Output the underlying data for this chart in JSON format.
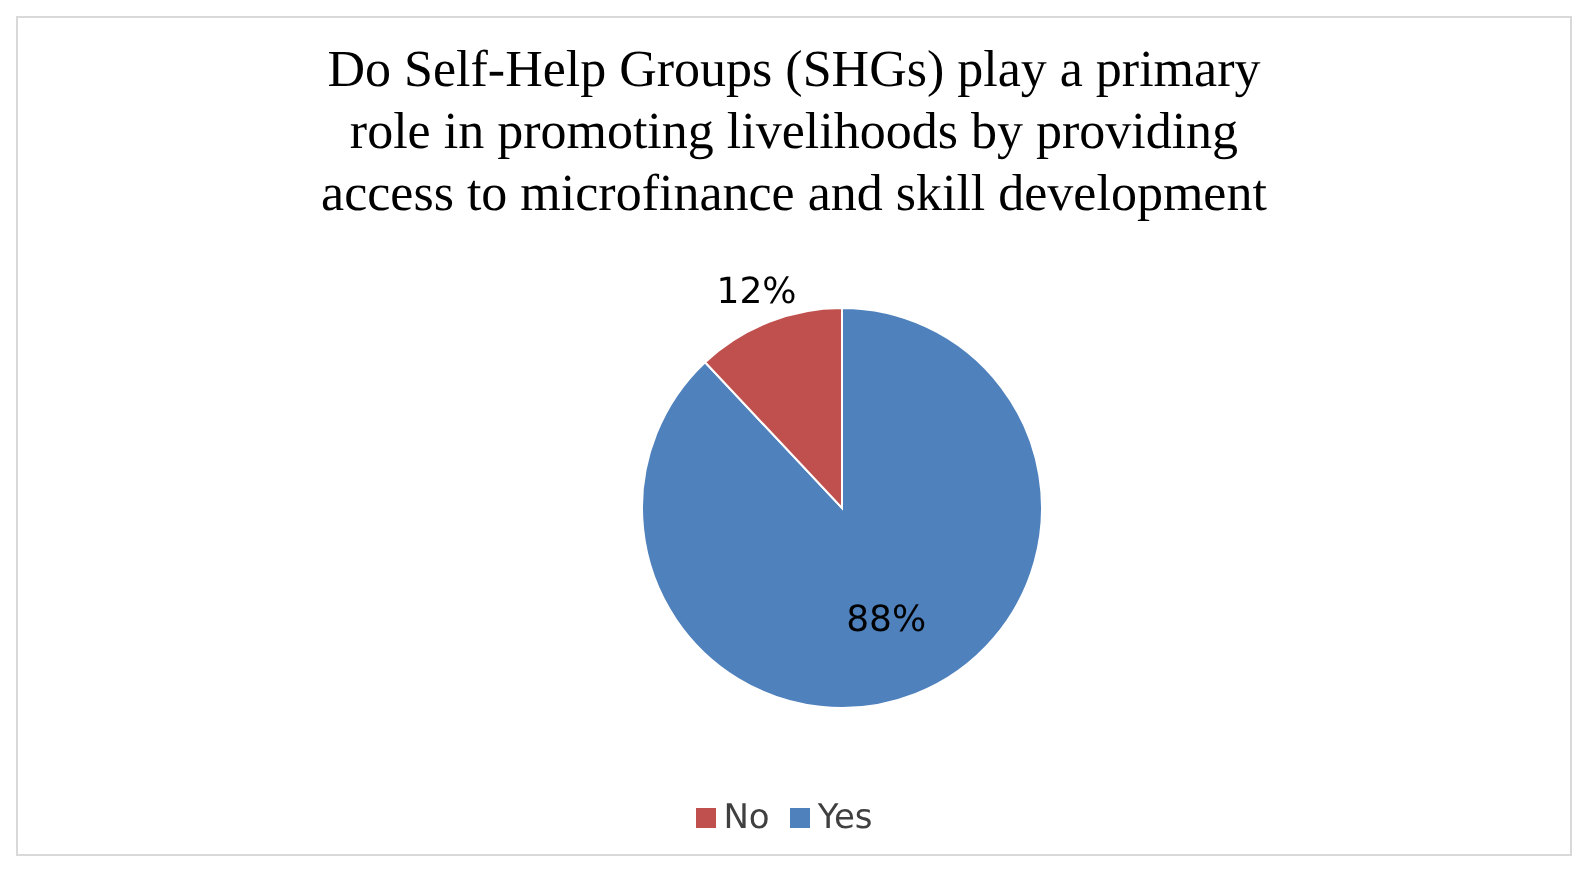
{
  "chart_data": {
    "type": "pie",
    "title": "Do Self-Help Groups (SHGs) play a primary role in promoting livelihoods by providing access to microfinance and skill development",
    "categories": [
      "Yes",
      "No"
    ],
    "values": [
      88,
      12
    ],
    "colors": [
      "#4f81bd",
      "#c0504d"
    ],
    "value_labels": [
      "88%",
      "12%"
    ],
    "legend": "bottom"
  }
}
